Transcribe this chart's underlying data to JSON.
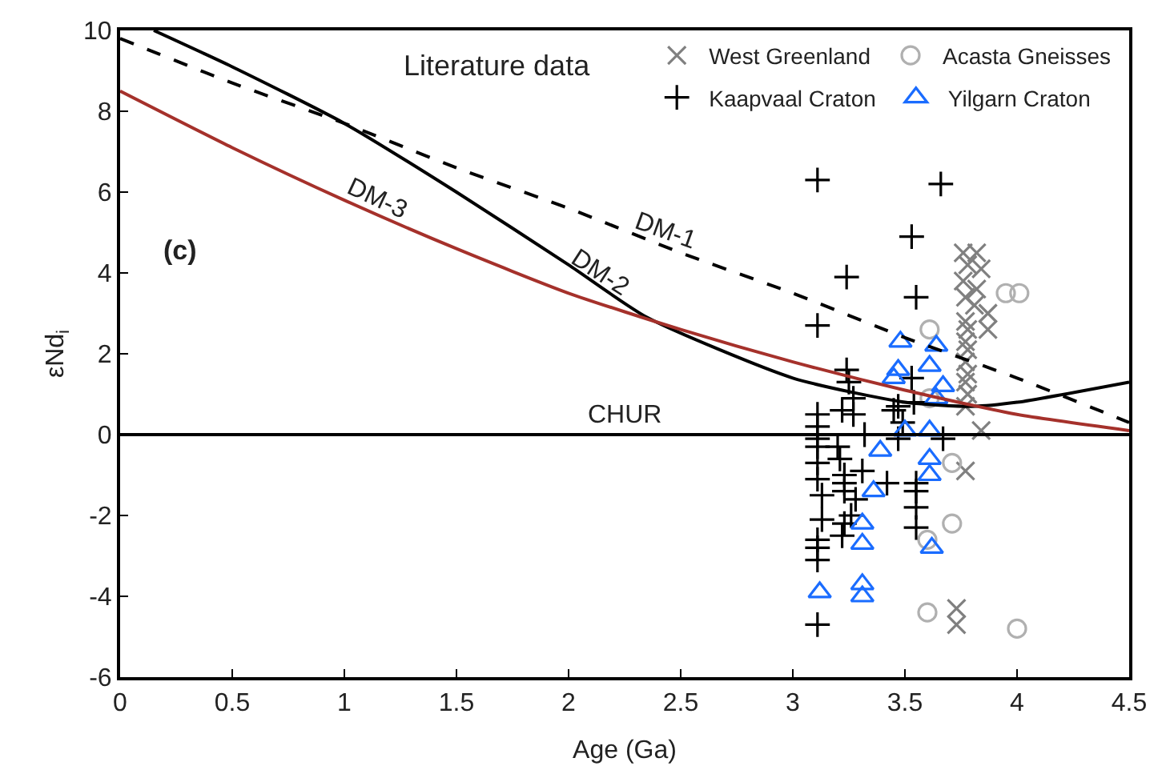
{
  "chart_data": {
    "type": "scatter",
    "xlabel": "Age (Ga)",
    "ylabel": "εNd$_{i}$",
    "xlim": [
      0,
      4.5
    ],
    "xticks": [
      0,
      0.5,
      1,
      1.5,
      2,
      2.5,
      3,
      3.5,
      4,
      4.5
    ],
    "ylim": [
      -6,
      10
    ],
    "yticks": [
      -6,
      -4,
      -2,
      0,
      2,
      4,
      6,
      8,
      10
    ],
    "legend": "top right",
    "series": [
      {
        "name": "West Greenland",
        "color": "#808080",
        "marker": "x",
        "x": [
          3.76,
          3.82,
          3.78,
          3.84,
          3.76,
          3.82,
          3.77,
          3.81,
          3.87,
          3.77,
          3.78,
          3.87,
          3.77,
          3.78,
          3.77,
          3.78,
          3.77,
          3.78,
          3.77,
          3.84,
          3.77,
          3.73,
          3.73
        ],
        "values": [
          4.5,
          4.5,
          4.2,
          4.1,
          3.8,
          3.6,
          3.4,
          3.2,
          3.0,
          2.8,
          2.6,
          2.6,
          2.3,
          2.1,
          1.8,
          1.5,
          1.3,
          1.0,
          0.7,
          0.1,
          -0.9,
          -4.3,
          -4.7
        ]
      },
      {
        "name": "Acasta Gneisses",
        "color": "#b0b0b0",
        "marker": "circle",
        "x": [
          3.61,
          3.61,
          3.95,
          4.01,
          3.6,
          3.6,
          3.71,
          3.71,
          4.0
        ],
        "values": [
          2.6,
          0.9,
          3.5,
          3.5,
          -2.6,
          -4.4,
          -0.7,
          -2.2,
          -4.8
        ]
      },
      {
        "name": "Kaapvaal Craton",
        "color": "#000000",
        "marker": "cross",
        "x": [
          3.11,
          3.66,
          3.53,
          3.24,
          3.55,
          3.11,
          3.24,
          3.25,
          3.53,
          3.27,
          3.47,
          3.54,
          3.11,
          3.11,
          3.11,
          3.11,
          3.11,
          3.11,
          3.13,
          3.13,
          3.11,
          3.11,
          3.11,
          3.11,
          3.22,
          3.27,
          3.2,
          3.21,
          3.23,
          3.23,
          3.23,
          3.28,
          3.26,
          3.23,
          3.22,
          3.32,
          3.31,
          3.42,
          3.45,
          3.47,
          3.49,
          3.55,
          3.55,
          3.55,
          3.55,
          3.67
        ],
        "values": [
          6.3,
          6.2,
          4.9,
          3.9,
          3.4,
          2.7,
          1.6,
          1.3,
          1.4,
          0.9,
          0.7,
          0.8,
          0.5,
          0.2,
          -0.1,
          -0.3,
          -0.7,
          -1.1,
          -1.5,
          -2.1,
          -2.6,
          -2.8,
          -3.1,
          -4.7,
          0.6,
          0.5,
          -0.3,
          -0.6,
          -1.0,
          -1.2,
          -1.4,
          -1.6,
          -2.0,
          -2.2,
          -2.5,
          0.0,
          -0.9,
          -1.2,
          0.6,
          -0.1,
          0.3,
          -1.2,
          -1.4,
          -1.8,
          -2.3,
          -0.1
        ]
      },
      {
        "name": "Yilgarn Craton",
        "color": "#1a6cff",
        "marker": "triangle",
        "x": [
          3.48,
          3.64,
          3.47,
          3.61,
          3.45,
          3.67,
          3.64,
          3.5,
          3.61,
          3.39,
          3.61,
          3.61,
          3.36,
          3.31,
          3.31,
          3.62,
          3.12,
          3.31,
          3.31
        ],
        "values": [
          2.3,
          2.2,
          1.6,
          1.7,
          1.4,
          1.2,
          0.9,
          0.1,
          0.1,
          -0.4,
          -0.6,
          -1.0,
          -1.4,
          -2.2,
          -2.7,
          -2.8,
          -3.9,
          -3.7,
          -4.0
        ]
      },
      {
        "type": "line",
        "color": "#000000",
        "line_style": "dashed",
        "marker": "none",
        "x": [
          0,
          0.5,
          1,
          1.5,
          2,
          2.5,
          3,
          3.5,
          4,
          4.5
        ],
        "values": [
          9.8,
          8.7,
          7.7,
          6.6,
          5.6,
          4.5,
          3.5,
          2.4,
          1.4,
          0.3
        ]
      },
      {
        "type": "line",
        "color": "#000000",
        "line_style": "solid",
        "marker": "none",
        "x": [
          0.15,
          0.5,
          1,
          1.5,
          2,
          2.35,
          3,
          3.5,
          3.8,
          4,
          4.5
        ],
        "values": [
          10,
          9.1,
          7.7,
          6.0,
          4.2,
          2.9,
          1.4,
          0.8,
          0.7,
          0.8,
          1.3
        ]
      },
      {
        "type": "line",
        "color": "#a5312b",
        "line_style": "solid",
        "marker": "none",
        "x": [
          0,
          0.5,
          1,
          1.5,
          2,
          2.5,
          3,
          3.5,
          4,
          4.5
        ],
        "values": [
          8.5,
          7.1,
          5.8,
          4.6,
          3.5,
          2.6,
          1.8,
          1.1,
          0.5,
          0.1
        ]
      }
    ],
    "ref_lines": [
      {
        "axis": "y",
        "value": 0,
        "label": "CHUR",
        "color": "#000000",
        "line_style": "solid"
      }
    ],
    "annotations": [
      "Literature data",
      "(c)",
      "DM-1",
      "DM-2",
      "DM-3"
    ]
  }
}
